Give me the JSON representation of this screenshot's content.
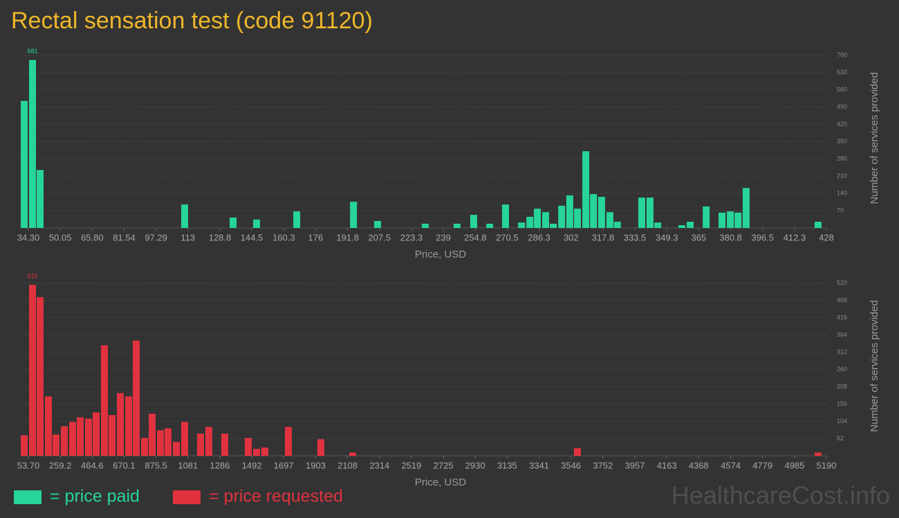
{
  "title": "Rectal sensation test (code 91120)",
  "watermark": "HealthcareCost.info",
  "chart_data": [
    {
      "type": "bar",
      "x_label": "Price, USD",
      "y_label": "Number of services provided",
      "series": [
        {
          "name": "= price paid",
          "color": "#27d49b",
          "x": [
            32.25,
            36.35,
            40.1,
            111.4,
            135.3,
            146.9,
            166.7,
            194.7,
            206.6,
            230.1,
            245.8,
            254.0,
            261.9,
            269.7,
            277.6,
            281.7,
            285.4,
            289.5,
            293.3,
            297.4,
            301.4,
            305.2,
            309.3,
            313.1,
            317.1,
            321.2,
            324.9,
            336.9,
            341.0,
            344.8,
            356.7,
            360.8,
            368.7,
            376.5,
            380.6,
            384.4,
            388.4,
            423.9
          ],
          "values": [
            515,
            681,
            235,
            95,
            42,
            34,
            67,
            106,
            28,
            17,
            17,
            53,
            17,
            95,
            22,
            45,
            78,
            64,
            17,
            90,
            132,
            78,
            311,
            137,
            126,
            64,
            25,
            123,
            123,
            22,
            11,
            25,
            87,
            62,
            67,
            62,
            162,
            25
          ]
        }
      ],
      "xlim": [
        29.86,
        428
      ],
      "xticks": [
        {
          "value": 34.3,
          "label": "34.30"
        },
        50.05,
        {
          "value": 65.8,
          "label": "65.80"
        },
        81.54,
        97.29,
        113,
        128.8,
        144.5,
        160.3,
        176,
        191.8,
        207.5,
        223.3,
        239,
        254.8,
        270.5,
        286.3,
        302,
        317.8,
        333.5,
        349.3,
        365,
        380.8,
        396.5,
        412.3,
        428
      ],
      "ylim": [
        0,
        700
      ],
      "yticks": [
        70,
        140,
        210,
        280,
        350,
        420,
        490,
        560,
        630,
        700
      ],
      "grid": true
    },
    {
      "type": "bar",
      "x_label": "Price, USD",
      "y_label": "Number of services provided",
      "series": [
        {
          "name": "= price requested",
          "color": "#e0323f",
          "x": [
            27.0,
            80.4,
            129.4,
            182.8,
            231.7,
            285.1,
            338.5,
            387.5,
            440.9,
            489.9,
            543.3,
            592.2,
            645.6,
            699.1,
            748.0,
            801.4,
            850.4,
            903.8,
            952.7,
            1006.2,
            1059.6,
            1162.0,
            1215.3,
            1317.7,
            1469.0,
            1522.5,
            1575.9,
            1727.2,
            1936.4,
            2141.1,
            3587.6,
            5136.4
          ],
          "values": [
            62,
            515,
            478,
            179,
            64,
            89,
            102,
            116,
            112,
            131,
            333,
            123,
            189,
            179,
            347,
            54,
            127,
            77,
            83,
            42,
            102,
            67,
            87,
            67,
            54,
            21,
            25,
            87,
            50,
            10,
            23,
            10
          ]
        }
      ],
      "xlim": [
        -4.16,
        5190
      ],
      "xticks": [
        {
          "value": 53.7,
          "label": "53.70"
        },
        259.2,
        464.6,
        670.1,
        875.5,
        1081,
        1286,
        1492,
        1697,
        1903,
        2108,
        2314,
        2519,
        2725,
        2930,
        3135,
        3341,
        3546,
        3752,
        3957,
        4163,
        4368,
        4574,
        4779,
        4985,
        5190
      ],
      "ylim": [
        0,
        520
      ],
      "yticks": [
        52,
        104,
        156,
        208,
        260,
        312,
        364,
        416,
        468,
        520
      ],
      "grid": true
    }
  ]
}
